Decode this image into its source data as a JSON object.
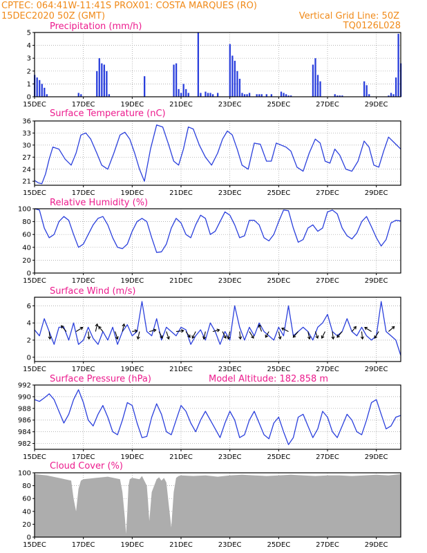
{
  "header": {
    "line1": "CPTEC:   064:41W-11:41S   PROX01: COSTA MARQUES (RO)",
    "line2_left": "15DEC2020 50Z (GMT)",
    "line2_right": "Vertical Grid Line: 50Z",
    "line3_right": "TQ0126L028"
  },
  "colors": {
    "header": "#f08a19",
    "title": "#ec1b8d",
    "line": "#2a3fdc",
    "bar": "#2a3fdc",
    "cloud": "#adadad",
    "arrow": "#000000"
  },
  "chart_data": [
    {
      "id": "precip",
      "type": "bar",
      "title": "Precipitation (mm/h)",
      "ylim": [
        0,
        5
      ],
      "yticks": [
        "0",
        "1",
        "2",
        "3",
        "4",
        "5"
      ],
      "xticks": [
        "15DEC",
        "17DEC",
        "19DEC",
        "21DEC",
        "23DEC",
        "25DEC",
        "27DEC",
        "29DEC"
      ],
      "x": [
        0.0,
        0.1,
        0.2,
        0.3,
        0.4,
        0.5,
        1.8,
        1.9,
        2.55,
        2.65,
        2.75,
        2.85,
        2.95,
        3.05,
        4.5,
        5.7,
        5.8,
        5.9,
        6.0,
        6.1,
        6.2,
        6.3,
        6.7,
        6.8,
        7.0,
        7.1,
        7.2,
        7.3,
        7.5,
        8.0,
        8.1,
        8.2,
        8.3,
        8.4,
        8.5,
        8.6,
        8.7,
        8.8,
        9.1,
        9.2,
        9.3,
        9.5,
        9.7,
        10.1,
        10.2,
        10.3,
        10.4,
        10.5,
        11.4,
        11.5,
        11.6,
        11.7,
        12.3,
        12.4,
        12.5,
        12.6,
        13.5,
        13.6,
        13.7,
        14.5,
        14.6,
        14.7,
        14.8,
        14.9,
        15.0
      ],
      "values": [
        1.7,
        1.5,
        1.3,
        1.0,
        0.7,
        0.2,
        0.3,
        0.2,
        2.0,
        3.0,
        2.6,
        2.5,
        2.0,
        0.2,
        1.6,
        2.5,
        2.6,
        0.6,
        0.3,
        1.0,
        0.6,
        0.3,
        5.0,
        0.3,
        0.4,
        0.3,
        0.3,
        0.2,
        0.3,
        4.1,
        3.2,
        2.8,
        2.0,
        1.4,
        0.3,
        0.2,
        0.2,
        0.3,
        0.2,
        0.2,
        0.2,
        0.2,
        0.2,
        0.4,
        0.3,
        0.2,
        0.1,
        0.1,
        2.5,
        3.0,
        1.7,
        1.2,
        0.2,
        0.1,
        0.1,
        0.1,
        1.2,
        0.9,
        0.2,
        0.1,
        0.3,
        0.2,
        1.5,
        4.9,
        2.6
      ]
    },
    {
      "id": "temp",
      "type": "line",
      "title": "Surface Temperature (nC)",
      "ylim": [
        20,
        36
      ],
      "yticks": [
        "21",
        "24",
        "27",
        "30",
        "33",
        "36"
      ],
      "xticks": [
        "15DEC",
        "17DEC",
        "19DEC",
        "21DEC",
        "23DEC",
        "25DEC",
        "27DEC",
        "29DEC"
      ],
      "x": [
        0,
        0.15,
        0.3,
        0.45,
        0.6,
        0.75,
        1.0,
        1.25,
        1.5,
        1.7,
        1.9,
        2.1,
        2.3,
        2.55,
        2.75,
        3.0,
        3.25,
        3.5,
        3.7,
        3.9,
        4.1,
        4.3,
        4.5,
        4.75,
        5.0,
        5.25,
        5.5,
        5.7,
        5.9,
        6.1,
        6.3,
        6.5,
        6.75,
        7.0,
        7.25,
        7.5,
        7.7,
        7.9,
        8.1,
        8.3,
        8.5,
        8.75,
        9.0,
        9.25,
        9.5,
        9.7,
        9.9,
        10.1,
        10.3,
        10.5,
        10.75,
        11.0,
        11.25,
        11.5,
        11.7,
        11.9,
        12.1,
        12.3,
        12.5,
        12.75,
        13.0,
        13.25,
        13.5,
        13.7,
        13.9,
        14.1,
        14.3,
        14.5,
        14.75,
        15.0
      ],
      "values": [
        21.2,
        20.6,
        20.4,
        22.8,
        26.5,
        29.5,
        29.0,
        26.5,
        25.0,
        28.0,
        32.5,
        33.0,
        31.5,
        28.0,
        25.0,
        24.0,
        28.0,
        32.5,
        33.2,
        31.5,
        28.0,
        24.0,
        21.0,
        29.0,
        35.0,
        34.5,
        30.0,
        26.0,
        25.0,
        29.0,
        34.5,
        34.0,
        30.0,
        27.0,
        25.0,
        28.0,
        31.5,
        33.5,
        32.5,
        29.0,
        25.0,
        24.0,
        30.5,
        30.2,
        26.0,
        26.0,
        30.5,
        30.0,
        29.5,
        28.5,
        24.5,
        23.5,
        28.0,
        31.5,
        30.5,
        26.0,
        25.5,
        29.0,
        27.5,
        24.0,
        23.5,
        26.0,
        31.0,
        29.5,
        25.0,
        24.5,
        28.5,
        32.0,
        30.5,
        29.0
      ]
    },
    {
      "id": "rh",
      "type": "line",
      "title": "Relative Humidity (%)",
      "ylim": [
        0,
        100
      ],
      "yticks": [
        "0",
        "20",
        "40",
        "60",
        "80",
        "100"
      ],
      "xticks": [
        "15DEC",
        "17DEC",
        "19DEC",
        "21DEC",
        "23DEC",
        "25DEC",
        "27DEC",
        "29DEC"
      ],
      "x": [
        0,
        0.2,
        0.4,
        0.6,
        0.8,
        1.0,
        1.2,
        1.4,
        1.6,
        1.8,
        2.0,
        2.2,
        2.4,
        2.6,
        2.8,
        3.0,
        3.2,
        3.4,
        3.6,
        3.8,
        4.0,
        4.2,
        4.4,
        4.6,
        4.8,
        5.0,
        5.2,
        5.4,
        5.6,
        5.8,
        6.0,
        6.2,
        6.4,
        6.6,
        6.8,
        7.0,
        7.2,
        7.4,
        7.6,
        7.8,
        8.0,
        8.2,
        8.4,
        8.6,
        8.8,
        9.0,
        9.2,
        9.4,
        9.6,
        9.8,
        10.0,
        10.2,
        10.4,
        10.6,
        10.8,
        11.0,
        11.2,
        11.4,
        11.6,
        11.8,
        12.0,
        12.2,
        12.4,
        12.6,
        12.8,
        13.0,
        13.2,
        13.4,
        13.6,
        13.8,
        14.0,
        14.2,
        14.4,
        14.6,
        14.8,
        15.0
      ],
      "values": [
        100,
        98,
        70,
        55,
        60,
        80,
        88,
        82,
        60,
        40,
        45,
        60,
        75,
        85,
        88,
        75,
        55,
        40,
        38,
        45,
        65,
        80,
        85,
        80,
        55,
        32,
        33,
        45,
        70,
        85,
        78,
        60,
        55,
        75,
        90,
        85,
        60,
        65,
        80,
        95,
        90,
        75,
        55,
        58,
        82,
        82,
        75,
        55,
        50,
        60,
        80,
        98,
        97,
        70,
        48,
        52,
        70,
        75,
        65,
        70,
        95,
        98,
        92,
        70,
        58,
        53,
        62,
        80,
        88,
        72,
        55,
        42,
        52,
        78,
        82,
        81
      ]
    },
    {
      "id": "wind",
      "type": "line",
      "title": "Surface Wind (m/s)",
      "ylim": [
        -0.5,
        7
      ],
      "yticks": [
        "0",
        "2",
        "4",
        "6"
      ],
      "xticks": [
        "15DEC",
        "17DEC",
        "19DEC",
        "21DEC",
        "23DEC",
        "25DEC",
        "27DEC",
        "29DEC"
      ],
      "x": [
        0,
        0.2,
        0.4,
        0.6,
        0.8,
        1.0,
        1.2,
        1.4,
        1.6,
        1.8,
        2.0,
        2.2,
        2.4,
        2.6,
        2.8,
        3.0,
        3.2,
        3.4,
        3.6,
        3.8,
        4.0,
        4.2,
        4.4,
        4.6,
        4.8,
        5.0,
        5.2,
        5.4,
        5.6,
        5.8,
        6.0,
        6.2,
        6.4,
        6.6,
        6.8,
        7.0,
        7.2,
        7.4,
        7.6,
        7.8,
        8.0,
        8.2,
        8.4,
        8.6,
        8.8,
        9.0,
        9.2,
        9.4,
        9.6,
        9.8,
        10.0,
        10.2,
        10.4,
        10.6,
        10.8,
        11.0,
        11.2,
        11.4,
        11.6,
        11.8,
        12.0,
        12.2,
        12.4,
        12.6,
        12.8,
        13.0,
        13.2,
        13.4,
        13.6,
        13.8,
        14.0,
        14.2,
        14.4,
        14.6,
        14.8,
        15.0
      ],
      "values": [
        3.2,
        2.5,
        4.5,
        3.0,
        1.5,
        3.5,
        3.5,
        2.0,
        4.0,
        1.5,
        2.0,
        3.5,
        2.2,
        1.5,
        3.0,
        2.0,
        3.5,
        1.5,
        3.0,
        3.8,
        2.5,
        3.0,
        6.5,
        3.0,
        2.5,
        4.5,
        2.0,
        3.5,
        3.0,
        2.5,
        3.5,
        3.2,
        1.5,
        2.5,
        3.2,
        2.0,
        4.0,
        3.0,
        1.5,
        3.0,
        2.0,
        6.0,
        3.5,
        2.0,
        3.5,
        2.5,
        4.0,
        3.0,
        2.5,
        2.0,
        3.5,
        2.5,
        6.0,
        2.5,
        3.0,
        3.5,
        3.0,
        2.0,
        3.5,
        4.0,
        5.0,
        3.0,
        2.5,
        3.0,
        4.5,
        3.0,
        2.5,
        3.5,
        2.5,
        2.0,
        2.5,
        6.5,
        3.0,
        2.5,
        2.0,
        0.2
      ]
    },
    {
      "id": "pressure",
      "type": "line",
      "title": "Surface Pressure (hPa)",
      "annotation": "Model Altitude: 182.858  m",
      "ylim": [
        981,
        992
      ],
      "yticks": [
        "982",
        "984",
        "986",
        "988",
        "990",
        "992"
      ],
      "xticks": [
        "15DEC",
        "17DEC",
        "19DEC",
        "21DEC",
        "23DEC",
        "25DEC",
        "27DEC",
        "29DEC"
      ],
      "x": [
        0,
        0.2,
        0.4,
        0.6,
        0.8,
        1.0,
        1.2,
        1.4,
        1.6,
        1.8,
        2.0,
        2.2,
        2.4,
        2.6,
        2.8,
        3.0,
        3.2,
        3.4,
        3.6,
        3.8,
        4.0,
        4.2,
        4.4,
        4.6,
        4.8,
        5.0,
        5.2,
        5.4,
        5.6,
        5.8,
        6.0,
        6.2,
        6.4,
        6.6,
        6.8,
        7.0,
        7.2,
        7.4,
        7.6,
        7.8,
        8.0,
        8.2,
        8.4,
        8.6,
        8.8,
        9.0,
        9.2,
        9.4,
        9.6,
        9.8,
        10.0,
        10.2,
        10.4,
        10.6,
        10.8,
        11.0,
        11.2,
        11.4,
        11.6,
        11.8,
        12.0,
        12.2,
        12.4,
        12.6,
        12.8,
        13.0,
        13.2,
        13.4,
        13.6,
        13.8,
        14.0,
        14.2,
        14.4,
        14.6,
        14.8,
        15.0
      ],
      "values": [
        989.5,
        989.2,
        989.8,
        990.5,
        989.5,
        987.5,
        985.5,
        987.0,
        989.5,
        991.2,
        989.0,
        986.0,
        985.0,
        987.0,
        988.5,
        986.5,
        984.0,
        983.5,
        986.0,
        989.0,
        988.5,
        985.5,
        983.0,
        983.2,
        986.5,
        988.8,
        987.0,
        984.0,
        983.5,
        986.0,
        988.5,
        987.5,
        985.5,
        984.0,
        986.0,
        987.5,
        986.0,
        984.5,
        983.0,
        985.5,
        987.5,
        986.0,
        983.0,
        983.5,
        986.0,
        987.5,
        985.5,
        983.5,
        982.8,
        985.5,
        986.5,
        984.0,
        981.8,
        983.0,
        986.5,
        987.0,
        985.0,
        983.0,
        984.5,
        987.5,
        986.5,
        984.0,
        983.0,
        985.0,
        987.0,
        986.0,
        984.0,
        983.5,
        986.0,
        989.0,
        989.5,
        987.0,
        984.5,
        985.0,
        986.5,
        986.8
      ]
    },
    {
      "id": "cloud",
      "type": "area",
      "title": "Cloud Cover (%)",
      "ylim": [
        0,
        100
      ],
      "yticks": [
        "0",
        "20",
        "40",
        "60",
        "80",
        "100"
      ],
      "xticks": [
        "15DEC",
        "17DEC",
        "19DEC",
        "21DEC",
        "23DEC",
        "25DEC",
        "27DEC",
        "29DEC"
      ],
      "x": [
        0,
        0.5,
        1.0,
        1.5,
        1.6,
        1.7,
        1.8,
        1.9,
        2.0,
        2.5,
        3.0,
        3.5,
        3.6,
        3.7,
        3.75,
        3.8,
        3.85,
        3.9,
        4.0,
        4.3,
        4.4,
        4.6,
        4.65,
        4.7,
        4.8,
        5.0,
        5.1,
        5.2,
        5.3,
        5.4,
        5.5,
        5.6,
        5.7,
        5.8,
        5.9,
        6.0,
        6.5,
        7.0,
        7.5,
        8.0,
        8.5,
        9.0,
        9.5,
        10.0,
        10.5,
        11.0,
        11.5,
        12.0,
        12.5,
        13.0,
        13.5,
        14.0,
        14.5,
        15.0
      ],
      "values": [
        98,
        96,
        92,
        88,
        60,
        40,
        75,
        88,
        90,
        92,
        94,
        90,
        70,
        30,
        5,
        40,
        80,
        90,
        92,
        90,
        95,
        80,
        55,
        25,
        70,
        90,
        93,
        88,
        92,
        85,
        50,
        15,
        70,
        92,
        95,
        96,
        95,
        96,
        94,
        96,
        97,
        96,
        95,
        96,
        97,
        96,
        95,
        96,
        96,
        95,
        96,
        97,
        96,
        98
      ]
    }
  ],
  "wind_vectors": {
    "x": [
      0.6,
      1.3,
      1.7,
      2.2,
      2.5,
      2.8,
      3.3,
      3.6,
      4.0,
      4.3,
      4.7,
      5.1,
      5.4,
      5.8,
      6.2,
      6.6,
      7.0,
      7.3,
      7.7,
      8.0,
      8.4,
      8.8,
      9.3,
      9.6,
      10.0,
      10.4,
      10.8,
      11.2,
      11.5,
      11.9,
      12.2,
      12.6,
      13.0,
      13.4,
      13.8,
      14.1,
      14.5
    ],
    "u": [
      0.1,
      -0.6,
      0.8,
      0.1,
      0.2,
      -0.5,
      0.3,
      0.2,
      0.6,
      -0.2,
      0.8,
      0.4,
      0.3,
      0.9,
      0.5,
      -0.4,
      -0.2,
      0.8,
      0.4,
      -0.2,
      0.1,
      0.5,
      -0.3,
      -0.4,
      0.2,
      -0.8,
      -0.6,
      0.2,
      0.3,
      -0.4,
      0.1,
      -0.6,
      0.5,
      0.1,
      -0.8,
      -0.5,
      0.7
    ],
    "v": [
      -0.9,
      0.7,
      0.5,
      -0.9,
      0.9,
      0.6,
      -0.9,
      0.9,
      0.1,
      -0.9,
      0.2,
      -0.8,
      -0.9,
      0.1,
      -0.7,
      -0.8,
      -0.9,
      0.2,
      -0.8,
      -0.9,
      -0.9,
      -0.8,
      0.8,
      -0.7,
      -0.9,
      0.4,
      -0.7,
      -0.9,
      -0.8,
      -0.8,
      -0.9,
      -0.7,
      0.6,
      -0.9,
      0.5,
      -0.8,
      0.6
    ]
  }
}
